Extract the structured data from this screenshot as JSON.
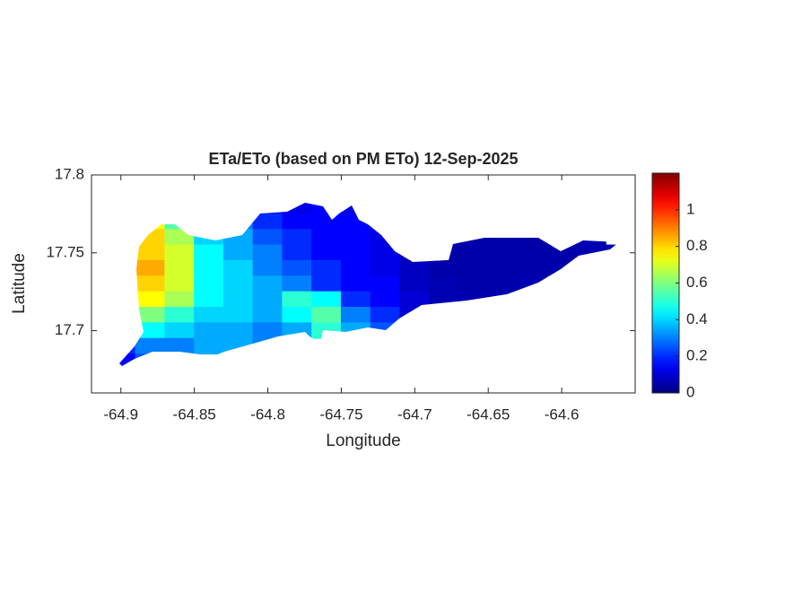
{
  "chart_data": {
    "type": "heatmap",
    "title": "ETa/ETo (based on PM ETo) 12-Sep-2025",
    "x_label": "Longitude",
    "y_label": "Latitude",
    "xlim": [
      -64.92,
      -64.55
    ],
    "ylim": [
      17.66,
      17.8
    ],
    "xticks": [
      -64.9,
      -64.85,
      -64.8,
      -64.75,
      -64.7,
      -64.65,
      -64.6
    ],
    "yticks": [
      17.7,
      17.75,
      17.8
    ],
    "colormap": "jet",
    "clim": [
      0,
      1.2
    ],
    "cticks": [
      0,
      0.2,
      0.4,
      0.6,
      0.8,
      1
    ],
    "x": [
      -64.9,
      -64.88,
      -64.86,
      -64.84,
      -64.82,
      -64.8,
      -64.78,
      -64.76,
      -64.74,
      -64.72,
      -64.7,
      -64.68,
      -64.66,
      -64.64,
      -64.62,
      -64.6,
      -64.58,
      -64.56
    ],
    "y": [
      17.78,
      17.77,
      17.76,
      17.75,
      17.74,
      17.73,
      17.72,
      17.71,
      17.7,
      17.69,
      17.68
    ],
    "values": [
      [
        null,
        null,
        null,
        null,
        null,
        0.15,
        0.12,
        0.15,
        0.12,
        null,
        null,
        null,
        null,
        null,
        null,
        null,
        null,
        null
      ],
      [
        null,
        0.75,
        0.55,
        0.4,
        0.3,
        0.2,
        0.15,
        0.15,
        0.15,
        0.12,
        null,
        null,
        0.05,
        0.05,
        0.05,
        null,
        null,
        null
      ],
      [
        null,
        0.8,
        0.65,
        0.4,
        0.35,
        0.25,
        0.2,
        0.15,
        0.15,
        0.12,
        0.08,
        0.06,
        0.05,
        0.05,
        0.05,
        0.05,
        0.06,
        null
      ],
      [
        null,
        0.8,
        0.7,
        0.45,
        0.35,
        0.3,
        0.2,
        0.15,
        0.15,
        0.12,
        0.08,
        0.05,
        0.05,
        0.05,
        0.05,
        0.05,
        0.06,
        0.06
      ],
      [
        null,
        0.85,
        0.7,
        0.45,
        0.4,
        0.3,
        0.25,
        0.2,
        0.15,
        0.12,
        0.08,
        0.05,
        0.05,
        0.05,
        0.05,
        0.05,
        null,
        null
      ],
      [
        null,
        0.8,
        0.7,
        0.45,
        0.4,
        0.35,
        0.3,
        0.2,
        0.15,
        0.15,
        0.08,
        0.06,
        0.05,
        0.05,
        0.06,
        null,
        null,
        null
      ],
      [
        null,
        0.75,
        0.65,
        0.45,
        0.4,
        0.35,
        0.5,
        0.45,
        0.2,
        0.15,
        0.1,
        0.06,
        0.06,
        0.06,
        null,
        null,
        null,
        null
      ],
      [
        null,
        0.6,
        0.5,
        0.4,
        0.4,
        0.35,
        0.45,
        0.55,
        0.3,
        0.2,
        0.1,
        0.08,
        null,
        null,
        null,
        null,
        null,
        null
      ],
      [
        0.3,
        0.45,
        0.4,
        0.35,
        0.35,
        0.3,
        0.35,
        0.5,
        0.35,
        0.25,
        null,
        null,
        null,
        null,
        null,
        null,
        null,
        null
      ],
      [
        0.2,
        0.3,
        0.3,
        0.35,
        0.35,
        0.3,
        0.3,
        null,
        null,
        null,
        null,
        null,
        null,
        null,
        null,
        null,
        null,
        null
      ],
      [
        0.15,
        0.25,
        null,
        null,
        null,
        null,
        null,
        null,
        null,
        null,
        null,
        null,
        null,
        null,
        null,
        null,
        null,
        null
      ]
    ]
  }
}
